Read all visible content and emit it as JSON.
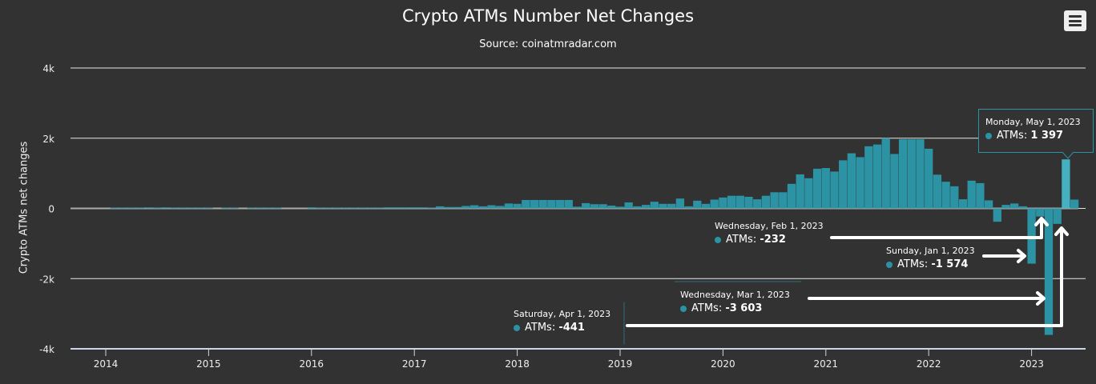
{
  "chart_data": {
    "type": "bar",
    "title": "Crypto ATMs Number Net Changes",
    "subtitle": "Source: coinatmradar.com",
    "ylabel": "Crypto ATMs net changes",
    "xlabel": "",
    "ylim": [
      -4000,
      4000
    ],
    "yticks": [
      {
        "v": 4000,
        "label": "4k"
      },
      {
        "v": 2000,
        "label": "2k"
      },
      {
        "v": 0,
        "label": "0"
      },
      {
        "v": -2000,
        "label": "-2k"
      },
      {
        "v": -4000,
        "label": "-4k"
      }
    ],
    "xticks": [
      "2014",
      "2015",
      "2016",
      "2017",
      "2018",
      "2019",
      "2020",
      "2021",
      "2022",
      "2023"
    ],
    "start": "2014-01",
    "series": [
      {
        "name": "ATMs",
        "color": "#2b93a3",
        "highlight_color": "#45b0bf",
        "values": [
          0,
          20,
          20,
          20,
          20,
          30,
          20,
          30,
          20,
          20,
          20,
          20,
          20,
          0,
          20,
          20,
          0,
          20,
          20,
          20,
          20,
          0,
          0,
          0,
          30,
          20,
          20,
          20,
          20,
          20,
          20,
          20,
          20,
          30,
          30,
          30,
          30,
          30,
          20,
          60,
          40,
          40,
          70,
          90,
          60,
          90,
          70,
          140,
          130,
          240,
          240,
          240,
          240,
          240,
          240,
          50,
          150,
          120,
          120,
          80,
          50,
          170,
          60,
          100,
          190,
          130,
          130,
          280,
          60,
          220,
          130,
          250,
          310,
          360,
          360,
          330,
          260,
          360,
          460,
          460,
          700,
          970,
          860,
          1130,
          1150,
          1050,
          1370,
          1570,
          1460,
          1770,
          1820,
          2000,
          1550,
          1970,
          1970,
          1970,
          1700,
          960,
          760,
          630,
          260,
          790,
          720,
          230,
          -380,
          100,
          140,
          60,
          -1574,
          -232,
          -3603,
          -441,
          1397,
          250
        ]
      }
    ],
    "grid": true,
    "annotations": [
      {
        "date": "Monday, May 1, 2023",
        "label": "ATMs",
        "value": "1 397"
      },
      {
        "date": "Wednesday, Feb 1, 2023",
        "label": "ATMs",
        "value": "-232"
      },
      {
        "date": "Sunday, Jan 1, 2023",
        "label": "ATMs",
        "value": "-1 574"
      },
      {
        "date": "Wednesday, Mar 1, 2023",
        "label": "ATMs",
        "value": "-3 603"
      },
      {
        "date": "Saturday, Apr 1, 2023",
        "label": "ATMs",
        "value": "-441"
      }
    ]
  },
  "menu_icon": "hamburger-menu-icon"
}
